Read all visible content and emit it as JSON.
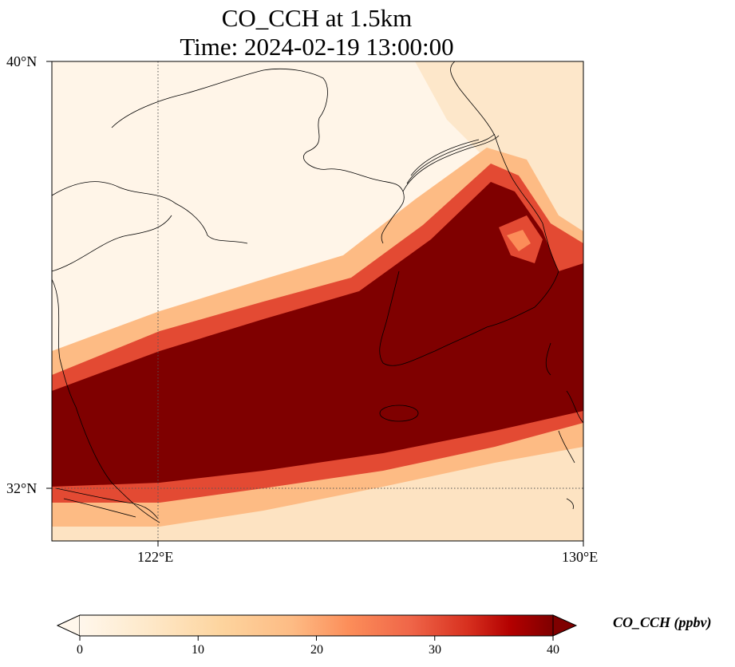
{
  "title": {
    "line1": "CO_CCH at 1.5km",
    "line2": "Time: 2024-02-19 13:00:00"
  },
  "map": {
    "projection": "PlateCarree",
    "extent": {
      "lon": [
        120.4,
        130
      ],
      "lat": [
        30.85,
        40
      ]
    },
    "x_ticks": [
      {
        "value": 122,
        "label": "122°E"
      },
      {
        "value": 130,
        "label": "130°E"
      }
    ],
    "y_ticks": [
      {
        "value": 40,
        "label": "40°N"
      },
      {
        "value": 32,
        "label": "32°N"
      }
    ],
    "gridlines": "dotted",
    "coastlines": true,
    "field": {
      "variable": "CO_CCH",
      "units": "ppbv",
      "description": "Plume band of high CO_CCH from the Yangtze delta north-eastward across the Yellow Sea, Korea and Sea of Japan; values mostly saturated above 40 ppbv in the core."
    }
  },
  "colorbar": {
    "label": "CO_CCH (ppbv)",
    "cmap": "OrRd",
    "range": [
      0,
      40
    ],
    "extend": "both",
    "ticks": [
      0,
      10,
      20,
      30,
      40
    ],
    "colors": {
      "min": "#fff7ec",
      "mid_low": "#fdd49e",
      "mid": "#fc8d59",
      "mid_high": "#d7301f",
      "max": "#7f0000"
    }
  }
}
